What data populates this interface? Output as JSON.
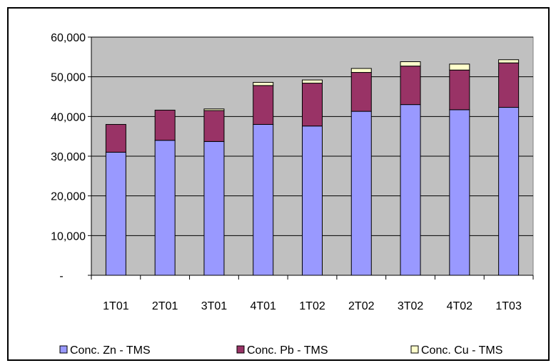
{
  "chart_data": {
    "type": "bar",
    "stacked": true,
    "categories": [
      "1T01",
      "2T01",
      "3T01",
      "4T01",
      "1T02",
      "2T02",
      "3T02",
      "4T02",
      "1T03"
    ],
    "series": [
      {
        "name": "Conc. Zn - TMS",
        "color": "#9999ff",
        "values": [
          31000,
          34000,
          33700,
          38000,
          37600,
          41300,
          43000,
          41700,
          42300
        ]
      },
      {
        "name": "Conc. Pb - TMS",
        "color": "#993366",
        "values": [
          7000,
          7600,
          7800,
          9800,
          10800,
          9800,
          9700,
          10000,
          11200
        ]
      },
      {
        "name": "Conc. Cu - TMS",
        "color": "#ffffcc",
        "values": [
          0,
          0,
          400,
          800,
          800,
          1000,
          1100,
          1500,
          800
        ]
      }
    ],
    "ylim": [
      0,
      60000
    ],
    "yticks": [
      0,
      10000,
      20000,
      30000,
      40000,
      50000,
      60000
    ],
    "ytick_labels": [
      "-",
      "10,000",
      "20,000",
      "30,000",
      "40,000",
      "50,000",
      "60,000"
    ],
    "grid": true,
    "plot_background": "#c0c0c0",
    "legend_position": "bottom",
    "title": "",
    "xlabel": "",
    "ylabel": ""
  }
}
